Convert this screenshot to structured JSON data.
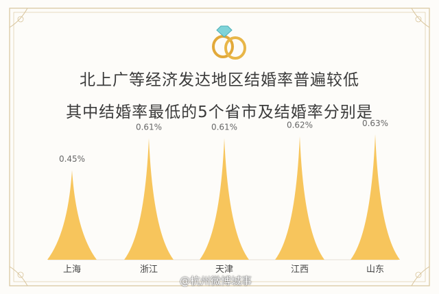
{
  "title": [
    "北上广等经济发达地区结婚率普遍较低",
    "其中结婚率最低的5个省市及结婚率分别是"
  ],
  "watermark": "@杭州微博城事",
  "icon": "wedding-rings-icon",
  "colors": {
    "peak": "#f7c55c",
    "frame": "#d8c49a",
    "text": "#3a3a3a",
    "label": "#666666"
  },
  "chart_data": {
    "type": "bar",
    "categories": [
      "上海",
      "浙江",
      "天津",
      "江西",
      "山东"
    ],
    "values": [
      0.45,
      0.61,
      0.61,
      0.62,
      0.63
    ],
    "value_labels": [
      "0.45%",
      "0.61%",
      "0.61%",
      "0.62%",
      "0.63%"
    ],
    "unit": "%",
    "ylim": [
      0,
      0.65
    ],
    "grid": false
  }
}
